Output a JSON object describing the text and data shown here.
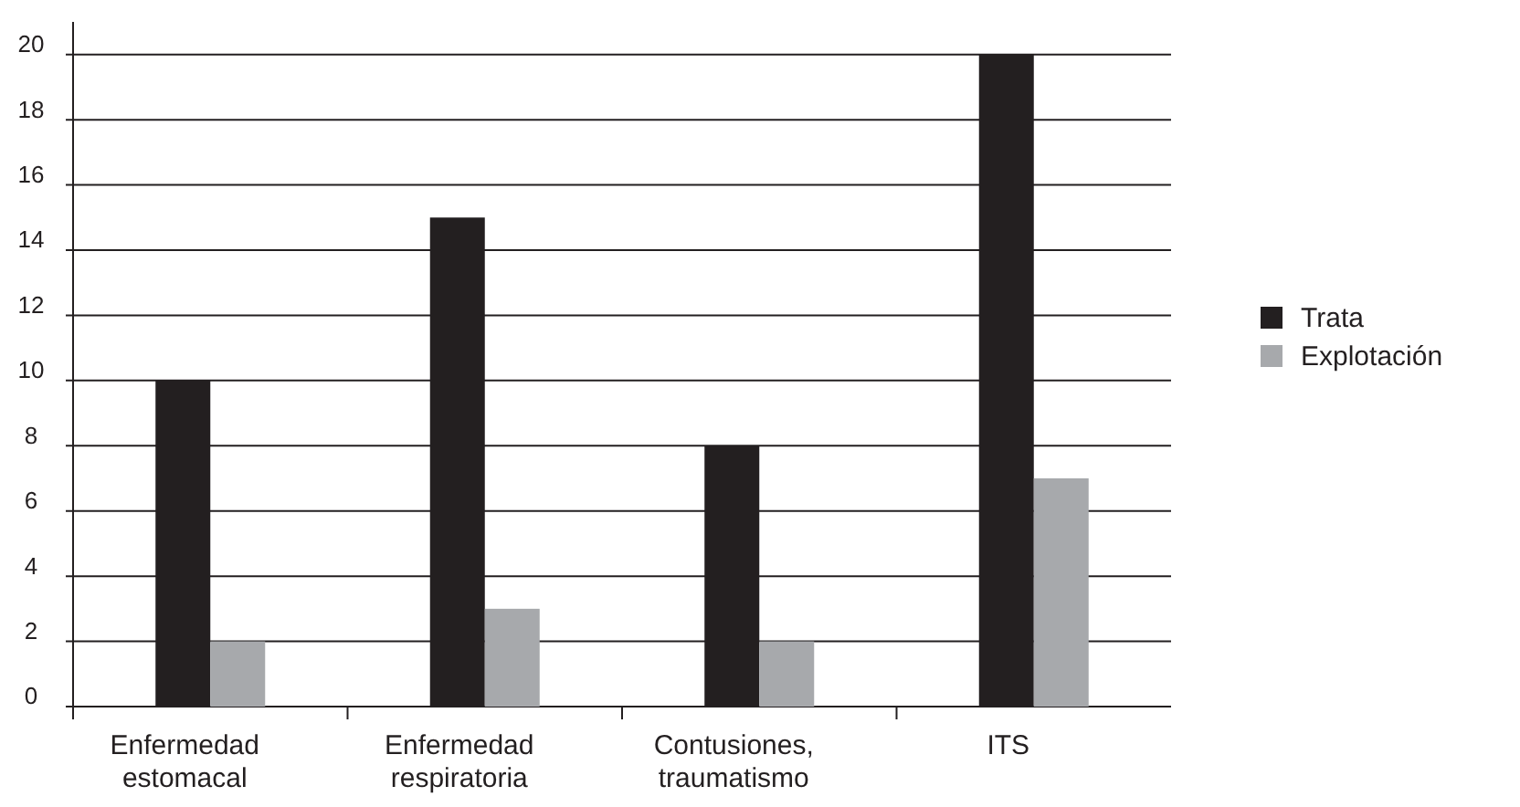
{
  "chart_data": {
    "type": "bar",
    "categories": [
      "Enfermedad estomacal",
      "Enfermedad respiratoria",
      "Contusiones, traumatismo",
      "ITS"
    ],
    "series": [
      {
        "name": "Trata",
        "color": "#231f20",
        "values": [
          10,
          15,
          8,
          20
        ]
      },
      {
        "name": "Explotación",
        "color": "#a7a9ac",
        "values": [
          2,
          3,
          2,
          7
        ]
      }
    ],
    "ylim": [
      0,
      21
    ],
    "yticks": [
      0,
      2,
      4,
      6,
      8,
      10,
      12,
      14,
      16,
      18,
      20
    ],
    "grid": "y",
    "legend": "right"
  }
}
